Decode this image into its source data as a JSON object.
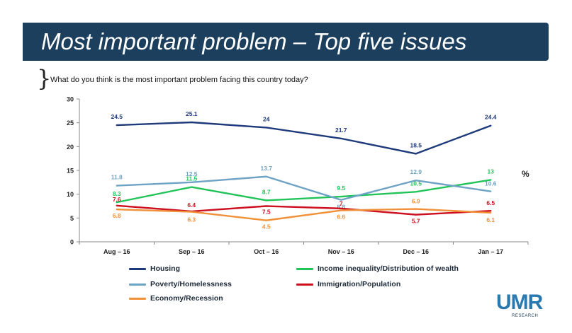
{
  "header": {
    "title": "Most important problem – Top five issues",
    "question": "What do you think is the most important problem facing this country today?",
    "brace": "}"
  },
  "unit_label": "%",
  "logo": {
    "main": "UMR",
    "sub": "RESEARCH"
  },
  "colors": {
    "banner": "#1b3f5c",
    "housing": "#1f3a7a",
    "income": "#22c45a",
    "poverty": "#6fa3c6",
    "immigration": "#cc1020",
    "economy": "#f0913a",
    "axis": "#888888"
  },
  "chart_data": {
    "type": "line",
    "categories": [
      "Aug – 16",
      "Sep – 16",
      "Oct – 16",
      "Nov – 16",
      "Dec – 16",
      "Jan – 17"
    ],
    "ylim": [
      0,
      30
    ],
    "yticks": [
      "0",
      "5",
      "10",
      "15",
      "20",
      "25",
      "30"
    ],
    "grid": false,
    "legend_position": "bottom",
    "series": [
      {
        "key": "housing",
        "name": "Housing",
        "values": [
          24.5,
          25.1,
          24,
          21.7,
          18.5,
          24.4
        ],
        "labels": [
          "24.5",
          "25.1",
          "24",
          "21.7",
          "18.5",
          "24.4"
        ]
      },
      {
        "key": "income",
        "name": "Income inequality/Distribution of wealth",
        "values": [
          8.3,
          11.5,
          8.7,
          9.5,
          10.5,
          13
        ],
        "labels": [
          "8.3",
          "11.5",
          "8.7",
          "9.5",
          "10.5",
          "13"
        ]
      },
      {
        "key": "poverty",
        "name": "Poverty/Homelessness",
        "values": [
          11.8,
          12.5,
          13.7,
          8.8,
          12.9,
          10.6
        ],
        "labels": [
          "11.8",
          "12.5",
          "13.7",
          "8.8",
          "12.9",
          "10.6"
        ]
      },
      {
        "key": "immigration",
        "name": "Immigration/Population",
        "values": [
          7.6,
          6.4,
          7.5,
          7,
          5.7,
          6.5
        ],
        "labels": [
          "7.6",
          "6.4",
          "7.5",
          "7",
          "5.7",
          "6.5"
        ]
      },
      {
        "key": "economy",
        "name": "Economy/Recession",
        "values": [
          6.8,
          6.3,
          4.5,
          6.6,
          6.9,
          6.1
        ],
        "labels": [
          "6.8",
          "6.3",
          "4.5",
          "6.6",
          "6.9",
          "6.1"
        ]
      }
    ]
  }
}
